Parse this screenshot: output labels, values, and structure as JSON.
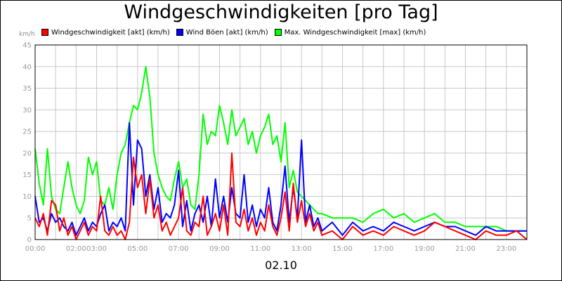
{
  "chart_data": {
    "type": "line",
    "title": "Windgeschwindigkeiten [pro Tag]",
    "unit_label": "km/h",
    "xlabel": "02.10",
    "ylim": [
      0,
      45
    ],
    "y_ticks": [
      "0",
      "5",
      "10",
      "15",
      "20",
      "25",
      "30",
      "35",
      "40",
      "45"
    ],
    "xlim": [
      0,
      24
    ],
    "x_tick_labels": [
      "00:00",
      "02:00",
      "03:00",
      "05:00",
      "07:00",
      "09:00",
      "11:00",
      "13:00",
      "15:00",
      "17:00",
      "19:00",
      "21:00",
      "23:00"
    ],
    "x_tick_hours": [
      0,
      2,
      3,
      5,
      7,
      9,
      11,
      13,
      15,
      17,
      19,
      21,
      23
    ],
    "grid": true,
    "legend_position": "top",
    "series": [
      {
        "name": "Windgeschwindigkeit [akt] (km/h)",
        "color": "#ff0000",
        "x": [
          0,
          0.2,
          0.4,
          0.6,
          0.8,
          1.0,
          1.2,
          1.4,
          1.6,
          1.8,
          2.0,
          2.2,
          2.4,
          2.6,
          2.8,
          3.0,
          3.2,
          3.4,
          3.6,
          3.8,
          4.0,
          4.2,
          4.4,
          4.6,
          4.8,
          5.0,
          5.2,
          5.4,
          5.6,
          5.8,
          6.0,
          6.2,
          6.4,
          6.6,
          6.8,
          7.0,
          7.2,
          7.4,
          7.6,
          7.8,
          8.0,
          8.2,
          8.4,
          8.6,
          8.8,
          9.0,
          9.2,
          9.4,
          9.6,
          9.8,
          10.0,
          10.2,
          10.4,
          10.6,
          10.8,
          11.0,
          11.2,
          11.4,
          11.6,
          11.8,
          12.0,
          12.2,
          12.4,
          12.6,
          12.8,
          13.0,
          13.2,
          13.4,
          13.6,
          13.8,
          14.0,
          14.5,
          15.0,
          15.5,
          16.0,
          16.5,
          17.0,
          17.5,
          18.0,
          18.5,
          19.0,
          19.5,
          20.0,
          20.5,
          21.0,
          21.5,
          22.0,
          22.5,
          23.0,
          23.5,
          24.0
        ],
        "values": [
          5,
          3,
          6,
          1,
          9,
          8,
          2,
          5,
          1,
          3,
          0,
          2,
          4,
          1,
          3,
          2,
          10,
          2,
          1,
          3,
          1,
          2,
          0,
          4,
          19,
          12,
          15,
          6,
          14,
          5,
          8,
          2,
          4,
          1,
          3,
          5,
          12,
          2,
          1,
          4,
          3,
          10,
          1,
          3,
          6,
          2,
          8,
          1,
          20,
          4,
          3,
          7,
          2,
          5,
          1,
          4,
          2,
          8,
          3,
          1,
          5,
          11,
          2,
          13,
          4,
          9,
          3,
          6,
          2,
          4,
          1,
          2,
          0,
          3,
          1,
          2,
          1,
          3,
          2,
          1,
          2,
          4,
          3,
          2,
          1,
          0,
          2,
          1,
          1,
          2,
          0
        ]
      },
      {
        "name": "Wind Böen [akt] (km/h)",
        "color": "#0000ff",
        "x": [
          0,
          0.2,
          0.4,
          0.6,
          0.8,
          1.0,
          1.2,
          1.4,
          1.6,
          1.8,
          2.0,
          2.2,
          2.4,
          2.6,
          2.8,
          3.0,
          3.2,
          3.4,
          3.6,
          3.8,
          4.0,
          4.2,
          4.4,
          4.6,
          4.8,
          5.0,
          5.2,
          5.4,
          5.6,
          5.8,
          6.0,
          6.2,
          6.4,
          6.6,
          6.8,
          7.0,
          7.2,
          7.4,
          7.6,
          7.8,
          8.0,
          8.2,
          8.4,
          8.6,
          8.8,
          9.0,
          9.2,
          9.4,
          9.6,
          9.8,
          10.0,
          10.2,
          10.4,
          10.6,
          10.8,
          11.0,
          11.2,
          11.4,
          11.6,
          11.8,
          12.0,
          12.2,
          12.4,
          12.6,
          12.8,
          13.0,
          13.2,
          13.4,
          13.6,
          13.8,
          14.0,
          14.5,
          15.0,
          15.5,
          16.0,
          16.5,
          17.0,
          17.5,
          18.0,
          18.5,
          19.0,
          19.5,
          20.0,
          20.5,
          21.0,
          21.5,
          22.0,
          22.5,
          23.0,
          23.5,
          24.0
        ],
        "values": [
          10,
          4,
          5,
          2,
          6,
          4,
          5,
          3,
          2,
          4,
          1,
          3,
          5,
          2,
          4,
          3,
          6,
          8,
          2,
          4,
          3,
          5,
          2,
          27,
          8,
          23,
          21,
          10,
          15,
          7,
          12,
          4,
          6,
          5,
          8,
          16,
          3,
          9,
          2,
          6,
          8,
          4,
          10,
          3,
          14,
          5,
          10,
          4,
          12,
          6,
          5,
          15,
          4,
          8,
          3,
          7,
          5,
          12,
          4,
          2,
          8,
          17,
          4,
          12,
          5,
          23,
          4,
          8,
          3,
          5,
          2,
          4,
          1,
          4,
          2,
          3,
          2,
          4,
          3,
          2,
          3,
          4,
          3,
          3,
          2,
          1,
          3,
          2,
          2,
          2,
          2
        ]
      },
      {
        "name": "Max. Windgeschwindigkeit [max] (km/h)",
        "color": "#00ff00",
        "x": [
          0,
          0.2,
          0.4,
          0.6,
          0.8,
          1.0,
          1.2,
          1.4,
          1.6,
          1.8,
          2.0,
          2.2,
          2.4,
          2.6,
          2.8,
          3.0,
          3.2,
          3.4,
          3.6,
          3.8,
          4.0,
          4.2,
          4.4,
          4.6,
          4.8,
          5.0,
          5.2,
          5.4,
          5.6,
          5.8,
          6.0,
          6.2,
          6.4,
          6.6,
          6.8,
          7.0,
          7.2,
          7.4,
          7.6,
          7.8,
          8.0,
          8.2,
          8.4,
          8.6,
          8.8,
          9.0,
          9.2,
          9.4,
          9.6,
          9.8,
          10.0,
          10.2,
          10.4,
          10.6,
          10.8,
          11.0,
          11.2,
          11.4,
          11.6,
          11.8,
          12.0,
          12.2,
          12.4,
          12.6,
          12.8,
          13.0,
          13.2,
          13.4,
          13.6,
          13.8,
          14.0,
          14.5,
          15.0,
          15.5,
          16.0,
          16.5,
          17.0,
          17.5,
          18.0,
          18.5,
          19.0,
          19.5,
          20.0,
          20.5,
          21.0,
          21.5,
          22.0,
          22.5,
          23.0,
          23.5,
          24.0
        ],
        "values": [
          21,
          13,
          8,
          21,
          10,
          7,
          6,
          12,
          18,
          12,
          8,
          6,
          9,
          19,
          15,
          18,
          9,
          8,
          12,
          7,
          15,
          20,
          22,
          27,
          31,
          30,
          34,
          40,
          33,
          20,
          15,
          12,
          10,
          9,
          14,
          18,
          12,
          14,
          8,
          7,
          15,
          29,
          22,
          25,
          24,
          31,
          27,
          22,
          30,
          24,
          26,
          28,
          22,
          25,
          20,
          24,
          26,
          29,
          22,
          24,
          18,
          27,
          12,
          16,
          11,
          10,
          9,
          8,
          7,
          6,
          6,
          5,
          5,
          5,
          4,
          6,
          7,
          5,
          6,
          4,
          5,
          6,
          4,
          4,
          3,
          3,
          3,
          3,
          2,
          2,
          2
        ]
      }
    ]
  }
}
